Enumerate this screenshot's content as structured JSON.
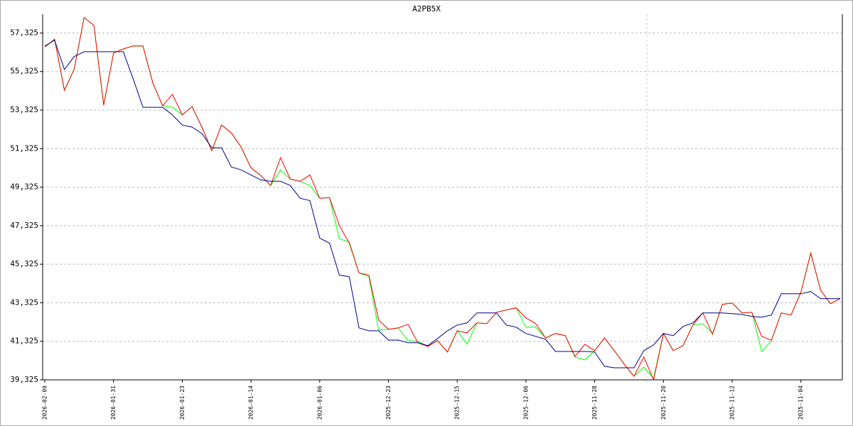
{
  "chart_data": {
    "type": "line",
    "title": "A2PB5X",
    "categories": [
      "2026-02-09",
      null,
      null,
      null,
      null,
      null,
      null,
      "2026-01-31",
      null,
      null,
      null,
      null,
      null,
      null,
      "2026-01-23",
      null,
      null,
      null,
      null,
      null,
      null,
      "2026-01-14",
      null,
      null,
      null,
      null,
      null,
      null,
      "2026-01-06",
      null,
      null,
      null,
      null,
      null,
      null,
      "2025-12-23",
      null,
      null,
      null,
      null,
      null,
      null,
      "2025-12-15",
      null,
      null,
      null,
      null,
      null,
      null,
      "2025-12-06",
      null,
      null,
      null,
      null,
      null,
      null,
      "2025-11-28",
      null,
      null,
      null,
      null,
      null,
      null,
      "2025-11-20",
      null,
      null,
      null,
      null,
      null,
      null,
      "2025-11-12",
      null,
      null,
      null,
      null,
      null,
      null,
      "2025-11-04",
      null,
      null,
      null,
      null
    ],
    "series": [
      {
        "color": "#00ff00",
        "values": [
          56.6,
          57.0,
          54.35,
          55.45,
          58.13,
          57.72,
          53.58,
          56.28,
          56.5,
          56.65,
          56.65,
          54.73,
          53.55,
          53.47,
          53.07,
          53.51,
          52.44,
          51.22,
          52.55,
          52.14,
          51.4,
          50.33,
          49.93,
          49.41,
          50.22,
          49.74,
          49.63,
          49.41,
          48.75,
          48.78,
          46.64,
          46.49,
          44.87,
          44.68,
          41.91,
          41.95,
          42.02,
          41.36,
          41.32,
          41.06,
          41.36,
          40.77,
          41.87,
          41.17,
          42.28,
          42.24,
          42.83,
          42.95,
          43.06,
          42.06,
          42.06,
          41.5,
          41.73,
          41.62,
          40.51,
          40.36,
          40.84,
          41.5,
          40.84,
          40.14,
          39.51,
          39.99,
          39.4,
          41.73,
          40.84,
          41.1,
          42.17,
          42.24,
          41.73,
          43.24,
          43.31,
          42.8,
          42.83,
          40.8,
          41.36,
          42.8,
          42.69,
          43.87,
          45.9,
          43.98,
          43.28,
          43.54
        ]
      },
      {
        "color": "#ff0000",
        "values": [
          56.6,
          57.0,
          54.35,
          55.45,
          58.13,
          57.72,
          53.58,
          56.28,
          56.5,
          56.65,
          56.65,
          54.73,
          53.55,
          54.14,
          53.07,
          53.51,
          52.44,
          51.22,
          52.55,
          52.14,
          51.4,
          50.33,
          49.93,
          49.41,
          50.85,
          49.74,
          49.63,
          49.96,
          48.75,
          48.78,
          47.34,
          46.42,
          44.87,
          44.76,
          42.43,
          41.95,
          42.02,
          42.21,
          41.25,
          41.06,
          41.36,
          40.77,
          41.87,
          41.76,
          42.28,
          42.24,
          42.83,
          42.95,
          43.06,
          42.54,
          42.24,
          41.5,
          41.73,
          41.62,
          40.54,
          41.17,
          40.84,
          41.5,
          40.84,
          40.14,
          39.51,
          40.51,
          39.33,
          41.73,
          40.84,
          41.1,
          42.17,
          42.8,
          41.69,
          43.24,
          43.31,
          42.8,
          42.83,
          41.58,
          41.39,
          42.8,
          42.69,
          43.87,
          45.9,
          43.98,
          43.28,
          43.54
        ]
      },
      {
        "color": "#00008b",
        "values": [
          56.65,
          56.95,
          55.43,
          56.1,
          56.35,
          56.35,
          56.35,
          56.35,
          56.35,
          54.95,
          53.47,
          53.47,
          53.47,
          53.07,
          52.55,
          52.44,
          52.11,
          51.37,
          51.37,
          50.37,
          50.22,
          49.96,
          49.7,
          49.63,
          49.63,
          49.41,
          48.75,
          48.63,
          46.68,
          46.42,
          44.76,
          44.68,
          42.02,
          41.87,
          41.87,
          41.39,
          41.39,
          41.25,
          41.25,
          41.1,
          41.47,
          41.87,
          42.17,
          42.28,
          42.8,
          42.8,
          42.8,
          42.17,
          42.06,
          41.73,
          41.58,
          41.43,
          40.8,
          40.8,
          40.8,
          40.8,
          40.77,
          40.03,
          39.95,
          39.95,
          39.95,
          40.84,
          41.14,
          41.73,
          41.62,
          42.1,
          42.28,
          42.8,
          42.8,
          42.8,
          42.76,
          42.72,
          42.61,
          42.58,
          42.69,
          43.79,
          43.79,
          43.79,
          43.91,
          43.54,
          43.54,
          43.54
        ]
      }
    ],
    "ylim": [
      39.325,
      58.3
    ],
    "yticks": [
      {
        "value": 39.325,
        "label": "39,325"
      },
      {
        "value": 41.325,
        "label": "41,325"
      },
      {
        "value": 43.325,
        "label": "43,325"
      },
      {
        "value": 45.325,
        "label": "45,325"
      },
      {
        "value": 47.325,
        "label": "47,325"
      },
      {
        "value": 49.325,
        "label": "49,325"
      },
      {
        "value": 51.325,
        "label": "51,325"
      },
      {
        "value": 53.325,
        "label": "53,325"
      },
      {
        "value": 55.325,
        "label": "55,325"
      },
      {
        "value": 57.325,
        "label": "57,325"
      }
    ],
    "grid": true
  }
}
